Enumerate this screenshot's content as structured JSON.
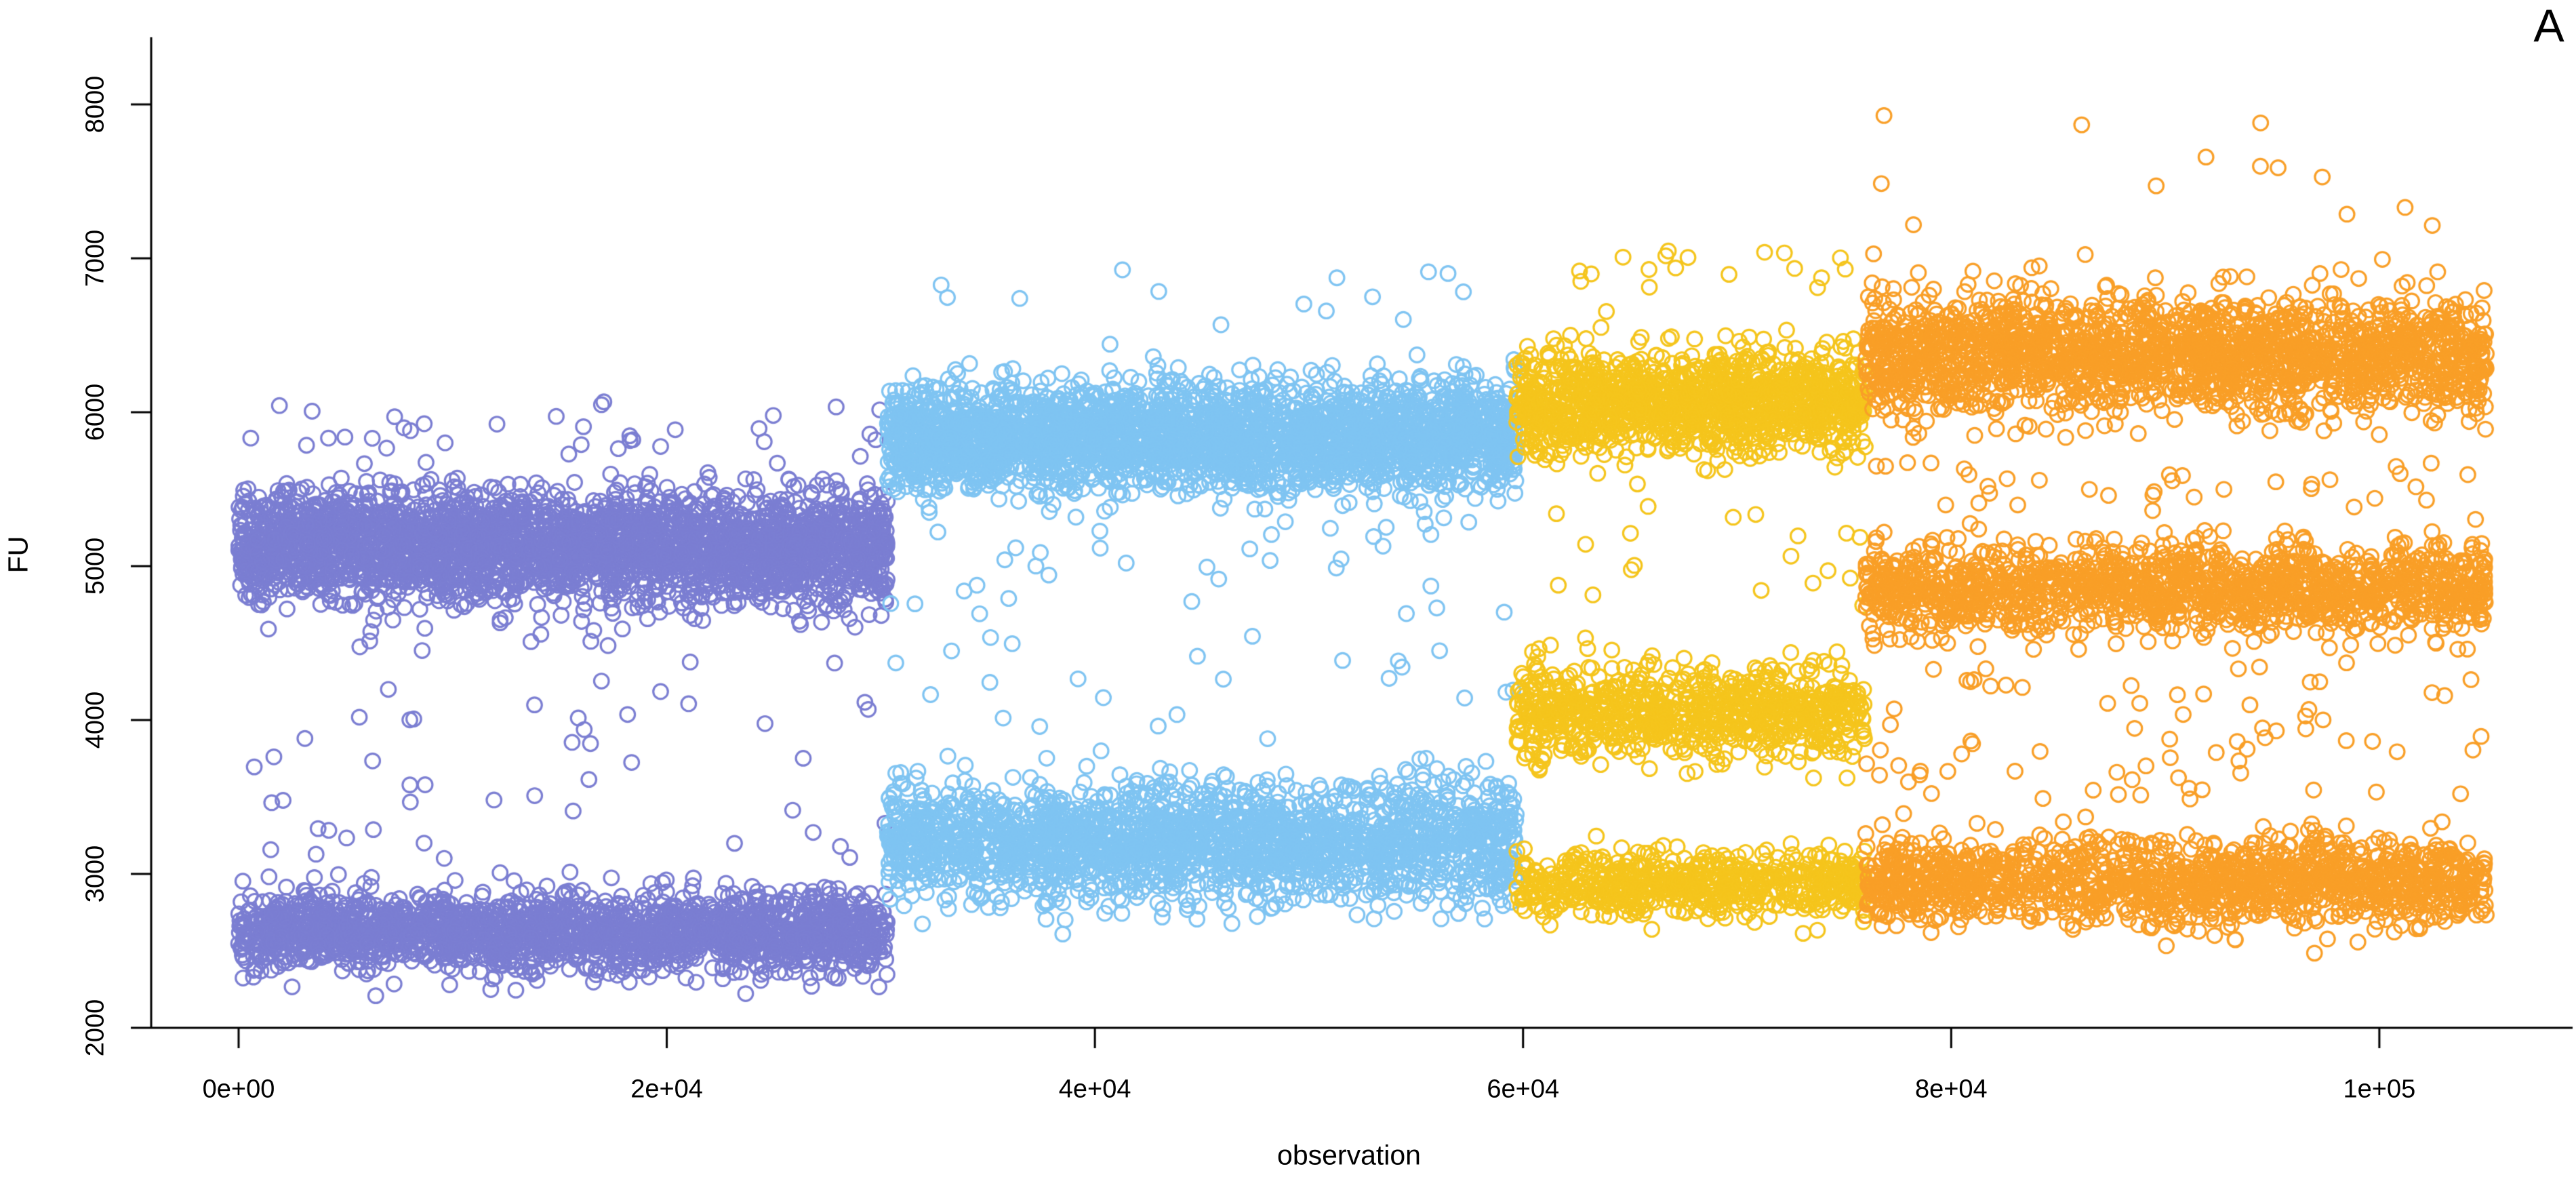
{
  "panel": {
    "label": "A"
  },
  "chart_data": {
    "type": "scatter",
    "title": "",
    "xlabel": "observation",
    "ylabel": "FU",
    "grid": false,
    "legend": "none",
    "marker": {
      "shape": "open-circle",
      "radius_px": 10.8,
      "stroke_px": 3.2
    },
    "xlim": [
      0,
      105000
    ],
    "ylim": [
      2000,
      8200
    ],
    "x_ticks": [
      {
        "label": "0e+00",
        "value": 0
      },
      {
        "label": "2e+04",
        "value": 20000
      },
      {
        "label": "4e+04",
        "value": 40000
      },
      {
        "label": "6e+04",
        "value": 60000
      },
      {
        "label": "8e+04",
        "value": 80000
      },
      {
        "label": "1e+05",
        "value": 100000
      }
    ],
    "y_ticks": [
      {
        "label": "2000",
        "value": 2000
      },
      {
        "label": "3000",
        "value": 3000
      },
      {
        "label": "4000",
        "value": 4000
      },
      {
        "label": "5000",
        "value": 5000
      },
      {
        "label": "6000",
        "value": 6000
      },
      {
        "label": "7000",
        "value": 7000
      },
      {
        "label": "8000",
        "value": 8000
      }
    ],
    "series": [
      {
        "name": "segment-1-purple",
        "color": "#7B7ED2",
        "x_range": [
          0,
          30300
        ],
        "n_points": 5100,
        "bands": [
          {
            "dist": "normal",
            "mean": 5125,
            "sd": 175,
            "min": 4360,
            "max": 6070,
            "weight": 0.6
          },
          {
            "dist": "normal",
            "mean": 2620,
            "sd": 128,
            "min": 2170,
            "max": 3560,
            "weight": 0.383
          },
          {
            "dist": "uniform",
            "min": 3050,
            "max": 4800,
            "weight": 0.012
          },
          {
            "dist": "uniform",
            "min": 5750,
            "max": 6080,
            "weight": 0.005
          }
        ]
      },
      {
        "name": "segment-2-lightblue",
        "color": "#7FC4F2",
        "x_range": [
          30300,
          59700
        ],
        "n_points": 4950,
        "bands": [
          {
            "dist": "normal",
            "mean": 5835,
            "sd": 175,
            "min": 5090,
            "max": 6720,
            "weight": 0.565
          },
          {
            "dist": "normal",
            "mean": 3215,
            "sd": 185,
            "min": 2530,
            "max": 3920,
            "weight": 0.42
          },
          {
            "dist": "uniform",
            "min": 3950,
            "max": 5420,
            "weight": 0.011
          },
          {
            "dist": "uniform",
            "min": 6550,
            "max": 6940,
            "weight": 0.004
          }
        ]
      },
      {
        "name": "segment-3-gold",
        "color": "#F5C51C",
        "x_range": [
          59700,
          76000
        ],
        "n_points": 2760,
        "bands": [
          {
            "dist": "normal",
            "mean": 6070,
            "sd": 165,
            "min": 5470,
            "max": 6800,
            "weight": 0.46
          },
          {
            "dist": "normal",
            "mean": 4050,
            "sd": 155,
            "min": 3530,
            "max": 4570,
            "weight": 0.29
          },
          {
            "dist": "normal",
            "mean": 2935,
            "sd": 105,
            "min": 2590,
            "max": 3300,
            "weight": 0.238
          },
          {
            "dist": "uniform",
            "min": 4600,
            "max": 5450,
            "weight": 0.007
          },
          {
            "dist": "uniform",
            "min": 6800,
            "max": 7060,
            "weight": 0.005
          }
        ]
      },
      {
        "name": "segment-4-orange",
        "color": "#F99F27",
        "x_range": [
          76000,
          105000
        ],
        "n_points": 4900,
        "bands": [
          {
            "dist": "normal",
            "mean": 6375,
            "sd": 190,
            "min": 5680,
            "max": 7160,
            "weight": 0.4
          },
          {
            "dist": "normal",
            "mean": 4855,
            "sd": 145,
            "min": 4400,
            "max": 5340,
            "weight": 0.29
          },
          {
            "dist": "normal",
            "mean": 2945,
            "sd": 140,
            "min": 2470,
            "max": 3430,
            "weight": 0.283
          },
          {
            "dist": "uniform",
            "min": 3480,
            "max": 4380,
            "weight": 0.016
          },
          {
            "dist": "uniform",
            "min": 5360,
            "max": 5680,
            "weight": 0.006
          },
          {
            "dist": "uniform",
            "min": 7160,
            "max": 8150,
            "weight": 0.0025
          }
        ]
      }
    ]
  }
}
